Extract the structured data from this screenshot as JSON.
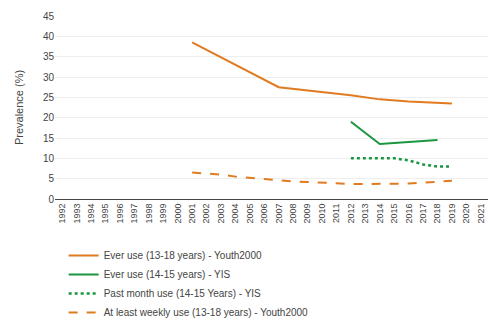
{
  "chart_data": {
    "type": "line",
    "ylabel": "Prevalence (%)",
    "xlim": [
      1991.5,
      2021.5
    ],
    "xticks": [
      1992,
      1993,
      1994,
      1995,
      1996,
      1997,
      1998,
      1999,
      2000,
      2001,
      2002,
      2003,
      2004,
      2005,
      2006,
      2007,
      2008,
      2009,
      2010,
      2011,
      2012,
      2013,
      2014,
      2015,
      2016,
      2017,
      2018,
      2019,
      2020,
      2021
    ],
    "ylim": [
      0,
      45
    ],
    "yticks": [
      0,
      5,
      10,
      15,
      20,
      25,
      30,
      35,
      40,
      45
    ],
    "grid": "y",
    "legend": "bottom",
    "series": [
      {
        "name": "Ever use (13-18 years) - Youth2000",
        "color": "#E07B20",
        "line_style": "solid",
        "x": [
          2001,
          2007,
          2012,
          2014,
          2016,
          2019
        ],
        "values": [
          38.5,
          27.5,
          25.5,
          24.5,
          24.0,
          23.5
        ]
      },
      {
        "name": "Ever use (14-15 years) - YIS",
        "color": "#1A9640",
        "line_style": "solid",
        "x": [
          2012,
          2014,
          2018
        ],
        "values": [
          19.0,
          13.5,
          14.5
        ]
      },
      {
        "name": "Past month use (14-15 Years) - YIS",
        "color": "#1A9640",
        "line_style": "dotted",
        "x": [
          2012,
          2014,
          2015,
          2016,
          2017,
          2018,
          2019
        ],
        "values": [
          10.0,
          10.0,
          10.0,
          9.5,
          8.5,
          8.0,
          8.0
        ]
      },
      {
        "name": "At least weekly use (13-18 years) - Youth2000",
        "color": "#E07B20",
        "line_style": "dashed",
        "x": [
          2001,
          2002,
          2003,
          2004,
          2005,
          2006,
          2007,
          2008,
          2009,
          2010,
          2011,
          2012,
          2013,
          2014,
          2015,
          2016,
          2017,
          2018,
          2019
        ],
        "values": [
          6.5,
          6.2,
          6.0,
          5.5,
          5.2,
          4.8,
          4.5,
          4.3,
          4.2,
          4.0,
          3.8,
          3.7,
          3.7,
          3.7,
          3.8,
          3.8,
          4.0,
          4.2,
          4.5
        ]
      }
    ]
  }
}
